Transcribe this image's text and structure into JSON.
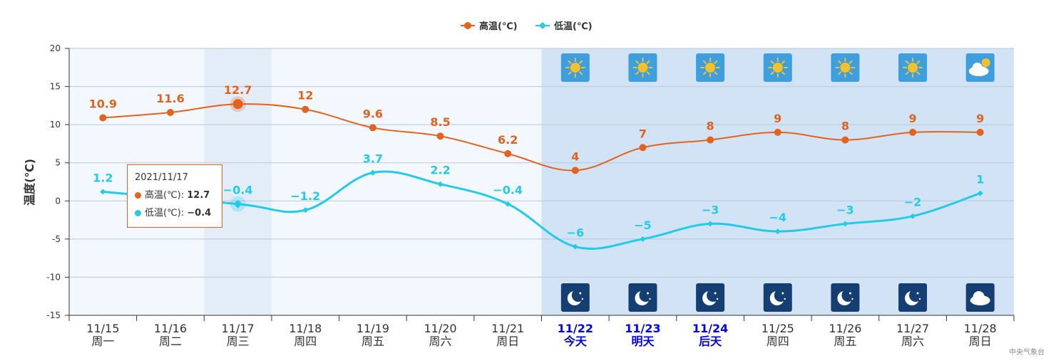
{
  "chart_data": {
    "type": "line",
    "ylabel": "温度(℃)",
    "ylim": [
      -15,
      20
    ],
    "yticks": [
      20,
      15,
      10,
      5,
      0,
      -5,
      -10,
      -15
    ],
    "categories": [
      {
        "date": "11/15",
        "day": "周一"
      },
      {
        "date": "11/16",
        "day": "周二"
      },
      {
        "date": "11/17",
        "day": "周三"
      },
      {
        "date": "11/18",
        "day": "周四"
      },
      {
        "date": "11/19",
        "day": "周五"
      },
      {
        "date": "11/20",
        "day": "周六"
      },
      {
        "date": "11/21",
        "day": "周日"
      },
      {
        "date": "11/22",
        "day": "今天"
      },
      {
        "date": "11/23",
        "day": "明天"
      },
      {
        "date": "11/24",
        "day": "后天"
      },
      {
        "date": "11/25",
        "day": "周四"
      },
      {
        "date": "11/26",
        "day": "周五"
      },
      {
        "date": "11/27",
        "day": "周六"
      },
      {
        "date": "11/28",
        "day": "周日"
      }
    ],
    "highlighted_days": [
      7,
      8,
      9
    ],
    "forecast_start_index": 7,
    "hovered_index": 2,
    "series": [
      {
        "name": "高温(℃)",
        "color": "#e3621c",
        "values": [
          10.9,
          11.6,
          12.7,
          12,
          9.6,
          8.5,
          6.2,
          4,
          7,
          8,
          9,
          8,
          9,
          9
        ],
        "labels": [
          "10.9",
          "11.6",
          "12.7",
          "12",
          "9.6",
          "8.5",
          "6.2",
          "4",
          "7",
          "8",
          "9",
          "8",
          "9",
          "9"
        ]
      },
      {
        "name": "低温(℃)",
        "color": "#21cbe9",
        "values": [
          1.2,
          null,
          -0.4,
          -1.2,
          3.7,
          2.2,
          -0.4,
          -6,
          -5,
          -3,
          -4,
          -3,
          -2,
          1
        ],
        "labels": [
          "1.2",
          "",
          "−0.4",
          "−1.2",
          "3.7",
          "2.2",
          "−0.4",
          "−6",
          "−5",
          "−3",
          "−4",
          "−3",
          "−2",
          "1"
        ]
      }
    ],
    "day_icons": [
      "sun-icon",
      "sun-icon",
      "sun-icon",
      "sun-icon",
      "sun-icon",
      "sun-icon",
      "partly-cloudy-icon"
    ],
    "night_icons": [
      "moon-icon",
      "moon-icon",
      "moon-icon",
      "moon-icon",
      "moon-icon",
      "moon-icon",
      "cloud-icon"
    ],
    "legend": {
      "position": "top-center"
    },
    "grid": true
  },
  "tooltip": {
    "date": "2021/11/17",
    "high_label": "高温(℃): ",
    "high_value": "12.7",
    "low_label": "低温(℃): ",
    "low_value": "−0.4"
  },
  "source": "中央气象台",
  "colors": {
    "high": "#e3621c",
    "low": "#21cbe9",
    "highlight_day": "#0000ee",
    "forecast_bg": "#d2e3f5",
    "past_bg": "#f2f8fd"
  }
}
